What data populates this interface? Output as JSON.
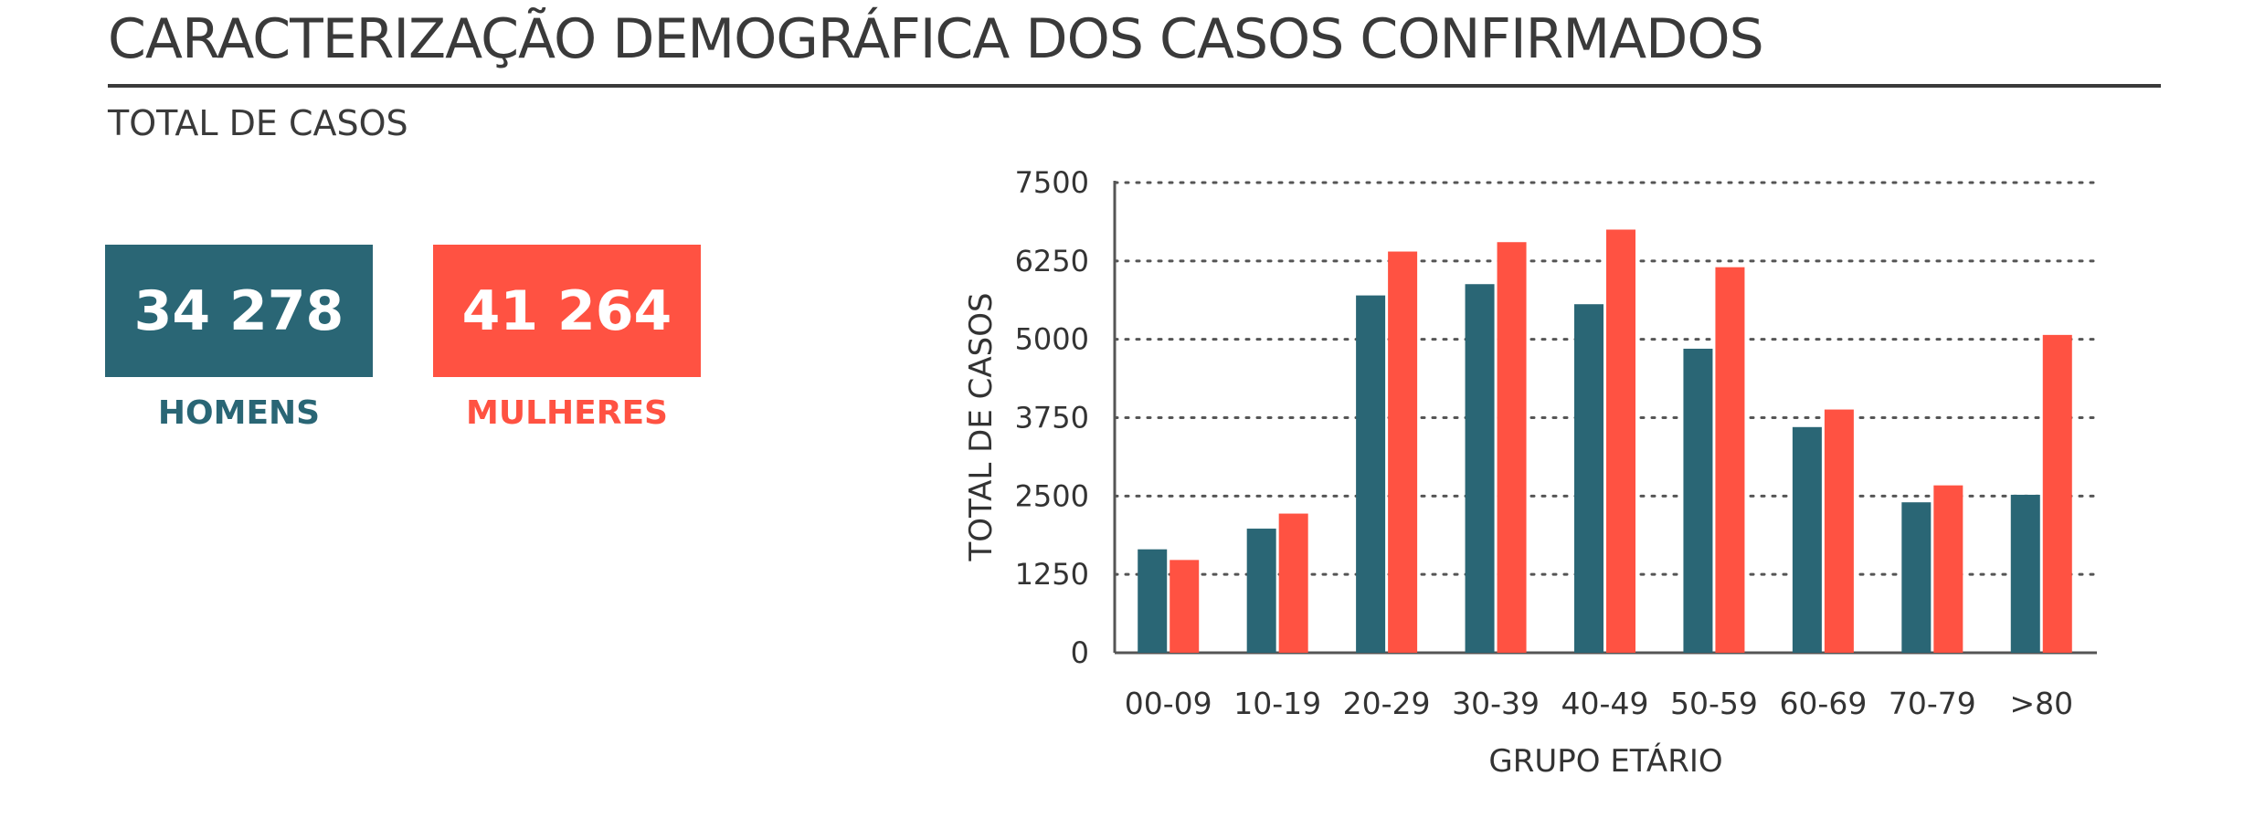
{
  "header": {
    "title": "CARACTERIZAÇÃO DEMOGRÁFICA DOS CASOS CONFIRMADOS",
    "subtitle": "TOTAL DE CASOS"
  },
  "stats": {
    "men": {
      "value": "34 278",
      "label": "HOMENS",
      "color": "#2a6675"
    },
    "women": {
      "value": "41 264",
      "label": "MULHERES",
      "color": "#ff5242"
    }
  },
  "chart_data": {
    "type": "bar",
    "categories": [
      "00-09",
      "10-19",
      "20-29",
      "30-39",
      "40-49",
      "50-59",
      "60-69",
      "70-79",
      ">80"
    ],
    "series": [
      {
        "color": "#2a6675",
        "values": [
          1650,
          1980,
          5700,
          5880,
          5560,
          4850,
          3600,
          2400,
          2520
        ]
      },
      {
        "color": "#ff5242",
        "values": [
          1480,
          2220,
          6400,
          6550,
          6750,
          6150,
          3880,
          2670,
          5070
        ]
      }
    ],
    "xlabel": "GRUPO ETÁRIO",
    "ylabel": "TOTAL DE CASOS",
    "ylim": [
      0,
      7500
    ],
    "yticks": [
      0,
      1250,
      2500,
      3750,
      5000,
      6250,
      7500
    ],
    "grid": true
  }
}
